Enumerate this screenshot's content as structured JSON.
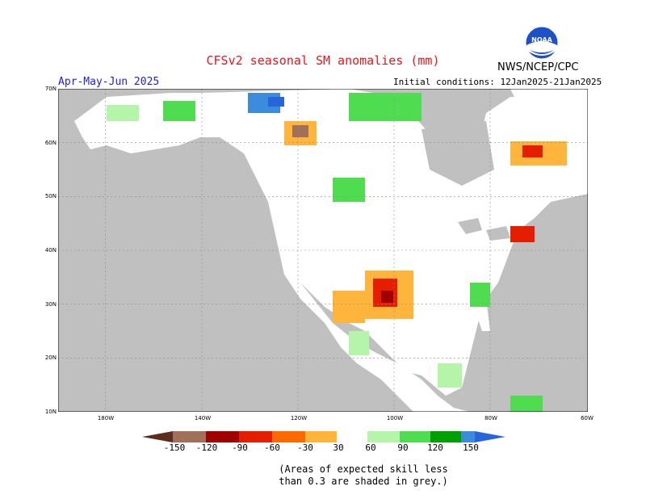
{
  "title": "CFSv2 seasonal SM anomalies (mm)",
  "org": "NWS/NCEP/CPC",
  "period": "Apr-May-Jun 2025",
  "initial_conditions": "Initial conditions: 12Jan2025-21Jan2025",
  "logo_text": "NOAA",
  "colors": {
    "title": "#e8141c",
    "period": "#1c1cf0",
    "ocean": "#c0c0c0",
    "land": "#ffffff"
  },
  "lat_labels": [
    "70N",
    "60N",
    "50N",
    "40N",
    "30N",
    "20N",
    "10N"
  ],
  "lon_labels": [
    "180W",
    "140W",
    "120W",
    "100W",
    "80W",
    "60W"
  ],
  "colorbar": {
    "labels": [
      "-150",
      "-120",
      "-90",
      "-60",
      "-30",
      "30",
      "60",
      "90",
      "120",
      "150"
    ],
    "colors": [
      "#5a2d1e",
      "#a0705a",
      "#a00000",
      "#e61e00",
      "#ff6a00",
      "#ffb43c",
      "#ffffff",
      "#b4f5aa",
      "#50dc50",
      "#00a000",
      "#3c8cdc",
      "#2864dc"
    ]
  },
  "note_lines": [
    "(Areas of expected skill less",
    "than 0.3 are shaded in grey.)"
  ]
}
